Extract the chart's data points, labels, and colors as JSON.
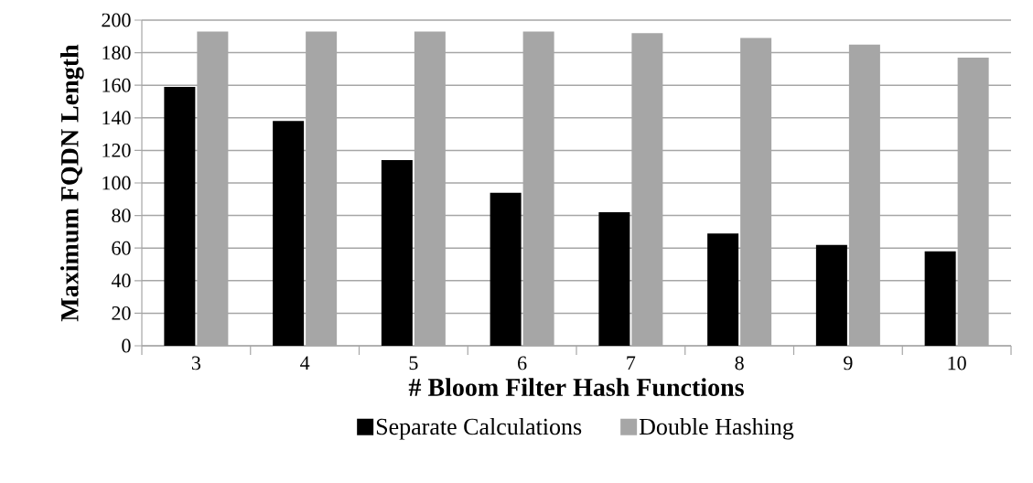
{
  "chart_data": {
    "type": "bar",
    "xlabel": "# Bloom Filter Hash Functions",
    "ylabel": "Maximum  FQDN Length",
    "categories": [
      "3",
      "4",
      "5",
      "6",
      "7",
      "8",
      "9",
      "10"
    ],
    "series": [
      {
        "name": "Separate Calculations",
        "color": "#000000",
        "values": [
          159,
          138,
          114,
          94,
          82,
          69,
          62,
          58
        ]
      },
      {
        "name": "Double Hashing",
        "color": "#a6a6a6",
        "values": [
          193,
          193,
          193,
          193,
          192,
          189,
          185,
          177
        ]
      }
    ],
    "ylim": [
      0,
      200
    ],
    "yticks": [
      0,
      20,
      40,
      60,
      80,
      100,
      120,
      140,
      160,
      180,
      200
    ],
    "grid": "y",
    "legend": "bottom"
  }
}
